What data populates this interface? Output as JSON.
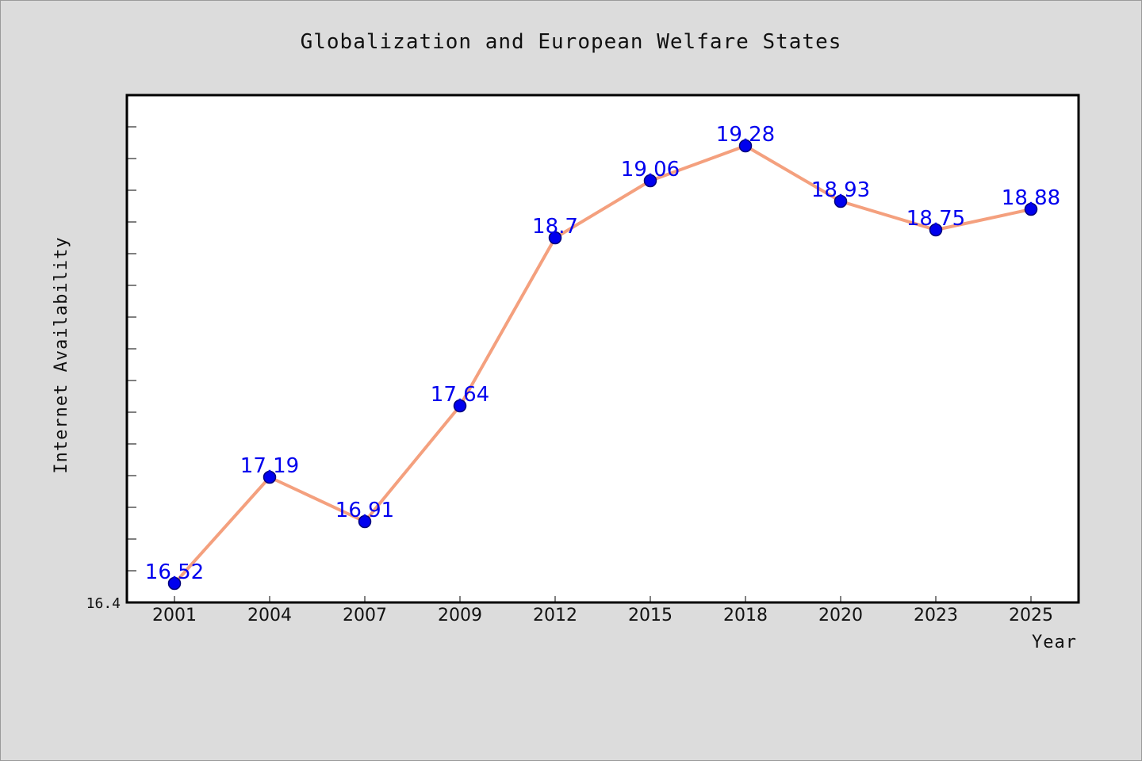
{
  "chart_data": {
    "type": "line",
    "title": "Globalization and European Welfare States",
    "xlabel": "Year",
    "ylabel": "Internet Availability",
    "categories": [
      "2001",
      "2004",
      "2007",
      "2009",
      "2012",
      "2015",
      "2018",
      "2020",
      "2023",
      "2025"
    ],
    "series": [
      {
        "values": [
          16.52,
          17.19,
          16.91,
          17.64,
          18.7,
          19.06,
          19.28,
          18.93,
          18.75,
          18.88
        ]
      }
    ],
    "ylim": [
      16.4,
      19.6
    ],
    "yticks_labeled": [
      "16.4"
    ],
    "grid": false,
    "legend": "none",
    "colors": {
      "line": "#f4a07e",
      "marker": "#0000ee",
      "marker_edge": "#00007a",
      "data_label": "#0000ee",
      "plot_background": "#ffffff",
      "page_background": "#dcdcdc"
    }
  }
}
